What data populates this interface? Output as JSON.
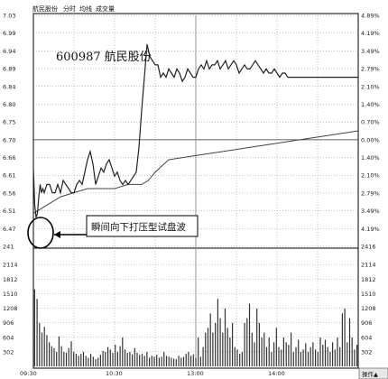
{
  "header": {
    "tabs": [
      "航民股份",
      "分时",
      "均线",
      "成交量"
    ]
  },
  "stock_label": "600987  航民股份",
  "annotation": "瞬间向下打压型试盘波",
  "operate_button": "操作▲",
  "colors": {
    "price_line": "#222222",
    "avg_line": "#444444",
    "volume": "#333333",
    "frame": "#000000"
  },
  "chart_data": [
    {
      "type": "line",
      "title": "",
      "xlabel": "",
      "ylabel": "",
      "x_ticks": [
        "09:30",
        "10:30",
        "13:00",
        "14:00"
      ],
      "x_range": [
        0,
        240
      ],
      "y_ticks_left": [
        "7.03",
        "6.99",
        "6.94",
        "6.89",
        "6.84",
        "6.80",
        "6.75",
        "6.70",
        "6.66",
        "6.61",
        "6.56",
        "6.51",
        "6.47",
        "241"
      ],
      "y_ticks_right": [
        "4.89%",
        "4.19%",
        "3.49%",
        "2.79%",
        "2.10%",
        "1.40%",
        "0.70%",
        "0.00%",
        "1.40%",
        "2.10%",
        "2.79%",
        "3.49%",
        "4.19%",
        "2416"
      ],
      "ylim": [
        6.47,
        7.03
      ],
      "grid": true,
      "series": [
        {
          "x": [
            0,
            1,
            2,
            3,
            4,
            5,
            6,
            7,
            8,
            10,
            12,
            14,
            16,
            18,
            20,
            22,
            24,
            26,
            28,
            30,
            32,
            34,
            36,
            38,
            40,
            42,
            44,
            46,
            48,
            50,
            52,
            54,
            56,
            58,
            60,
            62,
            64,
            66,
            68,
            70,
            72,
            74,
            76,
            78,
            80,
            82,
            84,
            86,
            88,
            90,
            92,
            94,
            96,
            98,
            100,
            102,
            104,
            106,
            108,
            110,
            112,
            114,
            116,
            118,
            120,
            122,
            124,
            126,
            128,
            130,
            132,
            134,
            136,
            138,
            140,
            142,
            144,
            146,
            148,
            150,
            152,
            154,
            156,
            158,
            160,
            162,
            164,
            166,
            168,
            170,
            172,
            174,
            176,
            178,
            180,
            182,
            184,
            186,
            188,
            190,
            192,
            194,
            196,
            198,
            200,
            202,
            204,
            206,
            208,
            210,
            212,
            214,
            216,
            218,
            220,
            222,
            224,
            226,
            228,
            230,
            232,
            234,
            236,
            238,
            240
          ],
          "values": [
            6.66,
            6.57,
            6.54,
            6.55,
            6.59,
            6.62,
            6.6,
            6.61,
            6.6,
            6.62,
            6.62,
            6.6,
            6.6,
            6.62,
            6.6,
            6.63,
            6.62,
            6.61,
            6.6,
            6.6,
            6.62,
            6.63,
            6.62,
            6.65,
            6.68,
            6.7,
            6.67,
            6.62,
            6.64,
            6.66,
            6.65,
            6.67,
            6.68,
            6.66,
            6.64,
            6.65,
            6.63,
            6.62,
            6.63,
            6.62,
            6.63,
            6.64,
            6.65,
            6.71,
            6.8,
            6.88,
            6.96,
            6.93,
            6.92,
            6.91,
            6.91,
            6.88,
            6.89,
            6.88,
            6.9,
            6.89,
            6.88,
            6.9,
            6.89,
            6.87,
            6.88,
            6.9,
            6.89,
            6.88,
            6.88,
            6.9,
            6.91,
            6.9,
            6.92,
            6.9,
            6.91,
            6.91,
            6.92,
            6.9,
            6.91,
            6.92,
            6.9,
            6.91,
            6.92,
            6.91,
            6.89,
            6.9,
            6.91,
            6.9,
            6.9,
            6.91,
            6.92,
            6.91,
            6.9,
            6.89,
            6.9,
            6.89,
            6.89,
            6.9,
            6.89,
            6.88,
            6.89,
            6.89,
            6.88,
            6.88,
            6.88,
            6.88,
            6.88,
            6.88,
            6.88,
            6.88,
            6.88,
            6.88,
            6.88,
            6.88,
            6.88,
            6.88,
            6.88,
            6.88,
            6.88,
            6.88,
            6.88,
            6.88,
            6.88,
            6.88,
            6.88,
            6.88,
            6.88,
            6.88,
            6.88
          ]
        },
        {
          "x": [
            0,
            10,
            20,
            40,
            60,
            70,
            80,
            85,
            90,
            100,
            120,
            140,
            160,
            180,
            200,
            220,
            240
          ],
          "values": [
            6.55,
            6.57,
            6.59,
            6.61,
            6.61,
            6.62,
            6.62,
            6.63,
            6.65,
            6.68,
            6.69,
            6.7,
            6.71,
            6.72,
            6.73,
            6.74,
            6.75
          ]
        }
      ]
    },
    {
      "type": "bar",
      "title": "",
      "ylabel": "",
      "y_ticks_left": [
        "2114",
        "1812",
        "1510",
        "1208",
        "906",
        "604",
        "302"
      ],
      "y_ticks_right": [
        "2114",
        "1812",
        "1510",
        "1208",
        "906",
        "604",
        "302"
      ],
      "ylim": [
        0,
        2416
      ],
      "values": [
        1600,
        1400,
        900,
        700,
        820,
        650,
        500,
        420,
        380,
        300,
        620,
        420,
        300,
        280,
        380,
        520,
        300,
        260,
        220,
        260,
        300,
        220,
        180,
        260,
        200,
        150,
        180,
        240,
        320,
        300,
        400,
        350,
        280,
        450,
        300,
        420,
        600,
        350,
        280,
        300,
        250,
        380,
        280,
        240,
        260,
        220,
        300,
        180,
        220,
        200,
        240,
        180,
        200,
        300,
        220,
        200,
        180,
        160,
        150,
        220,
        180,
        200,
        260,
        300,
        220,
        250,
        180,
        600,
        200,
        400,
        700,
        800,
        1100,
        700,
        900,
        1400,
        1000,
        700,
        1200,
        800,
        600,
        900,
        400,
        350,
        260,
        300,
        900,
        1000,
        1300,
        700,
        500,
        1200,
        900,
        600,
        700,
        400,
        600,
        300,
        500,
        800,
        400,
        350,
        600,
        500,
        450,
        700,
        300,
        400,
        550,
        300,
        350,
        480,
        300,
        400,
        500,
        350,
        300,
        600,
        450,
        550,
        400,
        300,
        500,
        350,
        600,
        400,
        1100,
        1200,
        500,
        1000,
        600,
        350,
        450
      ]
    }
  ]
}
